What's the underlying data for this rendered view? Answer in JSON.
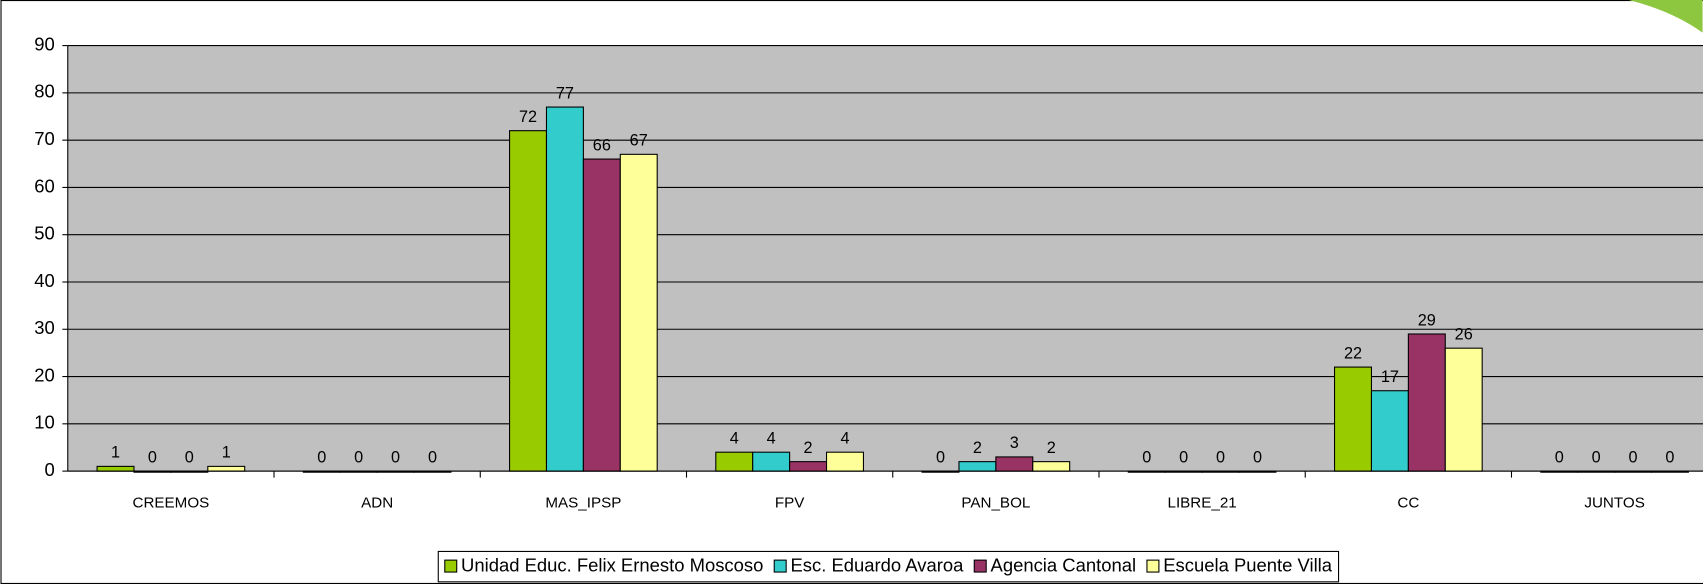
{
  "chart_data": {
    "type": "bar",
    "categories": [
      "CREEMOS",
      "ADN",
      "MAS_IPSP",
      "FPV",
      "PAN_BOL",
      "LIBRE_21",
      "CC",
      "JUNTOS"
    ],
    "series": [
      {
        "name": "Unidad Educ. Felix Ernesto Moscoso",
        "color": "#99cc00",
        "values": [
          1,
          0,
          72,
          4,
          0,
          0,
          22,
          0
        ]
      },
      {
        "name": "Esc. Eduardo Avaroa",
        "color": "#33cccc",
        "values": [
          0,
          0,
          77,
          4,
          2,
          0,
          17,
          0
        ]
      },
      {
        "name": "Agencia Cantonal",
        "color": "#993366",
        "values": [
          0,
          0,
          66,
          2,
          3,
          0,
          29,
          0
        ]
      },
      {
        "name": "Escuela Puente Villa",
        "color": "#ffff99",
        "values": [
          1,
          0,
          67,
          4,
          2,
          0,
          26,
          0
        ]
      }
    ],
    "ylim": [
      0,
      90
    ],
    "yticks": [
      0,
      10,
      20,
      30,
      40,
      50,
      60,
      70,
      80,
      90
    ],
    "grid": true,
    "legend": "bottom"
  }
}
